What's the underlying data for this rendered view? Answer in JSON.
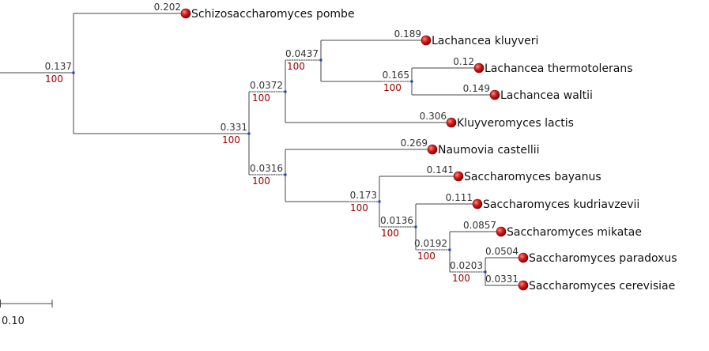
{
  "tree": {
    "scale_bar_label": "0.10",
    "colors": {
      "leaf": "#c0101a",
      "node": "#1f3fbf",
      "bootstrap": "#a00000",
      "branch": "#444444"
    },
    "internal_nodes": [
      {
        "id": "root",
        "branch_length": "0.137",
        "bootstrap": "100"
      },
      {
        "id": "n331",
        "branch_length": "0.331",
        "bootstrap": "100"
      },
      {
        "id": "n0372",
        "branch_length": "0.0372",
        "bootstrap": "100"
      },
      {
        "id": "n0437",
        "branch_length": "0.0437",
        "bootstrap": "100"
      },
      {
        "id": "n165",
        "branch_length": "0.165",
        "bootstrap": "100"
      },
      {
        "id": "n0316",
        "branch_length": "0.0316",
        "bootstrap": "100"
      },
      {
        "id": "n173",
        "branch_length": "0.173",
        "bootstrap": "100"
      },
      {
        "id": "n0136",
        "branch_length": "0.0136",
        "bootstrap": "100"
      },
      {
        "id": "n0192",
        "branch_length": "0.0192",
        "bootstrap": "100"
      },
      {
        "id": "n0203",
        "branch_length": "0.0203",
        "bootstrap": "100"
      }
    ],
    "leaves": [
      {
        "id": "pombe",
        "name": "Schizosaccharomyces pombe",
        "branch_length": "0.202"
      },
      {
        "id": "kluyveri",
        "name": "Lachancea kluyveri",
        "branch_length": "0.189"
      },
      {
        "id": "thermo",
        "name": "Lachancea thermotolerans",
        "branch_length": "0.12"
      },
      {
        "id": "waltii",
        "name": "Lachancea waltii",
        "branch_length": "0.149"
      },
      {
        "id": "lactis",
        "name": "Kluyveromyces lactis",
        "branch_length": "0.306"
      },
      {
        "id": "castellii",
        "name": "Naumovia castellii",
        "branch_length": "0.269"
      },
      {
        "id": "bayanus",
        "name": "Saccharomyces bayanus",
        "branch_length": "0.141"
      },
      {
        "id": "kudri",
        "name": "Saccharomyces kudriavzevii",
        "branch_length": "0.111"
      },
      {
        "id": "mikatae",
        "name": "Saccharomyces mikatae",
        "branch_length": "0.0857"
      },
      {
        "id": "paradoxus",
        "name": "Saccharomyces paradoxus",
        "branch_length": "0.0504"
      },
      {
        "id": "cerevisiae",
        "name": "Saccharomyces cerevisiae",
        "branch_length": "0.0331"
      }
    ]
  }
}
